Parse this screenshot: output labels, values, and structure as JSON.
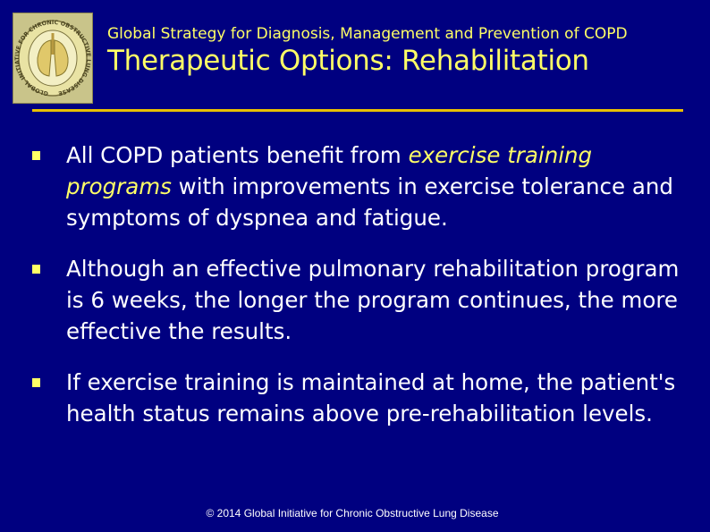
{
  "header": {
    "supertitle": "Global Strategy for Diagnosis, Management and Prevention of COPD",
    "title": "Therapeutic Options:  Rehabilitation"
  },
  "logo": {
    "icon": "gold-lungs-seal-icon",
    "ring_text": "GLOBAL INITIATIVE FOR CHRONIC OBSTRUCTIVE LUNG DISEASE"
  },
  "bullets": [
    {
      "pre": "All COPD patients benefit from ",
      "emph": "exercise training programs",
      "post": " with improvements in exercise tolerance and symptoms of dyspnea and fatigue."
    },
    {
      "pre": "Although an effective pulmonary rehabilitation program is 6 weeks, the longer the program continues, the more effective the results.",
      "emph": "",
      "post": ""
    },
    {
      "pre": "If exercise training is maintained at home, the patient's health status remains above pre-rehabilitation levels.",
      "emph": "",
      "post": ""
    }
  ],
  "footer": {
    "text": "© 2014 Global Initiative for Chronic Obstructive Lung Disease"
  },
  "colors": {
    "background": "#000080",
    "accent": "#ffff66",
    "rule": "#e8c000",
    "body_text": "#ffffff"
  }
}
